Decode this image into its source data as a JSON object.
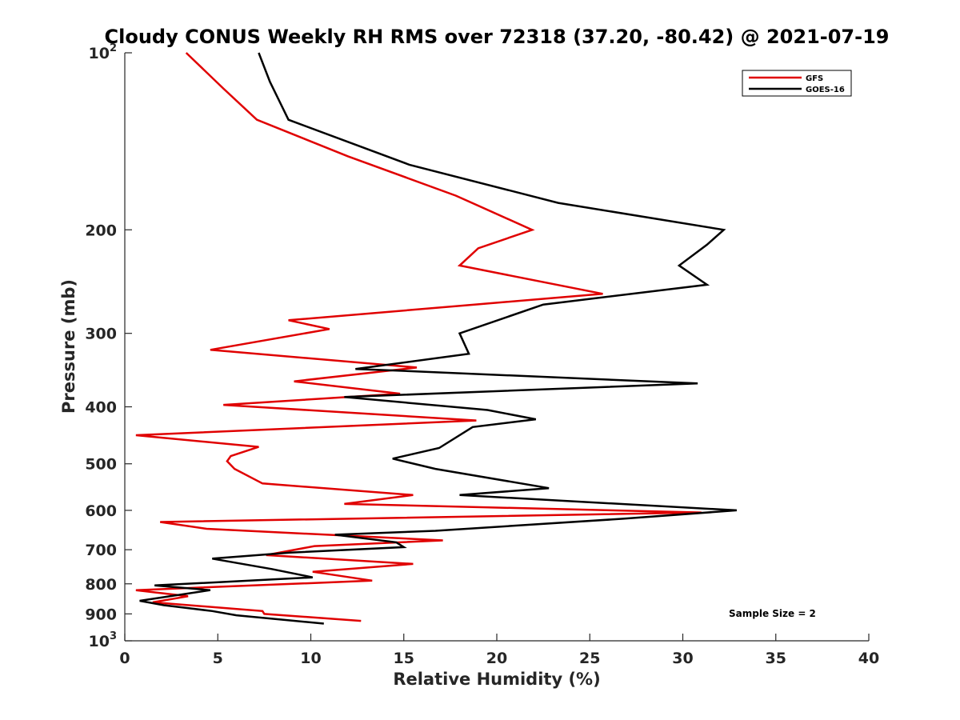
{
  "chart_data": {
    "type": "line",
    "title": "Cloudy CONUS Weekly RH RMS over 72318 (37.20, -80.42) @ 2021-07-19",
    "xlabel": "Relative Humidity (%)",
    "ylabel": "Pressure (mb)",
    "xlim": [
      0,
      40
    ],
    "ylim": [
      100,
      1000
    ],
    "y_scale": "log",
    "y_reversed": true,
    "x_ticks": [
      0,
      5,
      10,
      15,
      20,
      25,
      30,
      35,
      40
    ],
    "y_ticks": [
      {
        "value": 100,
        "label": "10",
        "sup": "2"
      },
      {
        "value": 200,
        "label": "200"
      },
      {
        "value": 300,
        "label": "300"
      },
      {
        "value": 400,
        "label": "400"
      },
      {
        "value": 500,
        "label": "500"
      },
      {
        "value": 600,
        "label": "600"
      },
      {
        "value": 700,
        "label": "700"
      },
      {
        "value": 800,
        "label": "800"
      },
      {
        "value": 900,
        "label": "900"
      },
      {
        "value": 1000,
        "label": "10",
        "sup": "3"
      }
    ],
    "legend_position": "top-right",
    "annotation": "Sample Size = 2",
    "series": [
      {
        "name": "GFS",
        "color": "#e00000",
        "points": [
          [
            3.3,
            100
          ],
          [
            5.3,
            115
          ],
          [
            7.1,
            130
          ],
          [
            12.0,
            150
          ],
          [
            17.8,
            175
          ],
          [
            21.9,
            200
          ],
          [
            19.0,
            215
          ],
          [
            18.0,
            230
          ],
          [
            25.7,
            257
          ],
          [
            8.8,
            285
          ],
          [
            11.0,
            295
          ],
          [
            4.6,
            320
          ],
          [
            15.7,
            343
          ],
          [
            9.1,
            362
          ],
          [
            14.8,
            380
          ],
          [
            5.3,
            397
          ],
          [
            18.9,
            422
          ],
          [
            0.6,
            447
          ],
          [
            7.2,
            468
          ],
          [
            5.7,
            485
          ],
          [
            5.5,
            495
          ],
          [
            5.9,
            510
          ],
          [
            7.4,
            540
          ],
          [
            15.5,
            565
          ],
          [
            11.8,
            585
          ],
          [
            31.0,
            605
          ],
          [
            1.9,
            628
          ],
          [
            4.4,
            645
          ],
          [
            17.1,
            675
          ],
          [
            10.2,
            690
          ],
          [
            7.6,
            715
          ],
          [
            15.5,
            740
          ],
          [
            10.1,
            763
          ],
          [
            13.3,
            790
          ],
          [
            0.6,
            820
          ],
          [
            3.4,
            840
          ],
          [
            1.5,
            860
          ],
          [
            7.4,
            890
          ],
          [
            7.5,
            900
          ],
          [
            12.7,
            925
          ]
        ]
      },
      {
        "name": "GOES-16",
        "color": "#000000",
        "points": [
          [
            7.2,
            100
          ],
          [
            7.8,
            112
          ],
          [
            8.8,
            130
          ],
          [
            15.3,
            155
          ],
          [
            23.3,
            180
          ],
          [
            32.2,
            200
          ],
          [
            31.3,
            212
          ],
          [
            29.8,
            230
          ],
          [
            31.3,
            248
          ],
          [
            22.5,
            268
          ],
          [
            18.0,
            300
          ],
          [
            18.5,
            325
          ],
          [
            12.4,
            345
          ],
          [
            14.5,
            347
          ],
          [
            30.8,
            365
          ],
          [
            11.8,
            385
          ],
          [
            19.5,
            405
          ],
          [
            22.1,
            420
          ],
          [
            18.7,
            433
          ],
          [
            16.9,
            470
          ],
          [
            14.4,
            490
          ],
          [
            16.7,
            510
          ],
          [
            22.8,
            550
          ],
          [
            18.0,
            565
          ],
          [
            32.9,
            600
          ],
          [
            26.8,
            620
          ],
          [
            16.7,
            650
          ],
          [
            11.3,
            660
          ],
          [
            14.6,
            680
          ],
          [
            15.0,
            693
          ],
          [
            8.9,
            708
          ],
          [
            4.7,
            725
          ],
          [
            7.9,
            755
          ],
          [
            10.1,
            780
          ],
          [
            1.6,
            805
          ],
          [
            4.6,
            820
          ],
          [
            0.8,
            855
          ],
          [
            2.1,
            870
          ],
          [
            4.7,
            890
          ],
          [
            6.0,
            905
          ],
          [
            10.7,
            935
          ]
        ]
      }
    ]
  }
}
